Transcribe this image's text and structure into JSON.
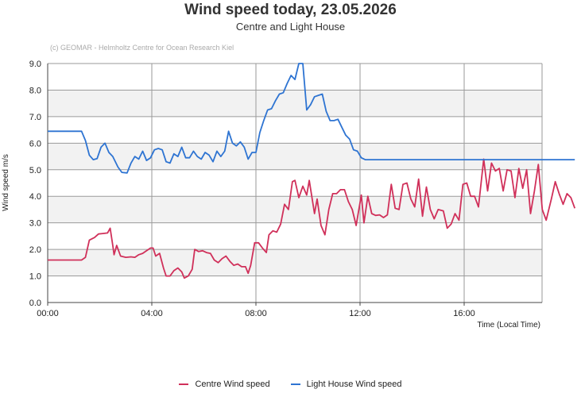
{
  "colors": {
    "centre": "#d0305a",
    "lighthouse": "#2e74d2",
    "grid": "#9a9a9a",
    "band": "#f2f2f2"
  },
  "chart_data": {
    "type": "line",
    "title": "Wind speed today, 23.05.2026",
    "subtitle": "Centre and Light House",
    "credit": "(c) GEOMAR - Helmholtz Centre for Ocean Research Kiel",
    "xlabel": "Time (Local Time)",
    "ylabel": "Wind speed  m/s",
    "xlim": [
      0,
      19
    ],
    "ylim": [
      0,
      9
    ],
    "grid": true,
    "legend_position": "bottom",
    "x_ticks": [
      {
        "value": 0,
        "label": "00:00"
      },
      {
        "value": 4,
        "label": "04:00"
      },
      {
        "value": 8,
        "label": "08:00"
      },
      {
        "value": 12,
        "label": "12:00"
      },
      {
        "value": 16,
        "label": "16:00"
      }
    ],
    "y_ticks": [
      {
        "value": 0,
        "label": "0.0"
      },
      {
        "value": 1,
        "label": "1.0"
      },
      {
        "value": 2,
        "label": "2.0"
      },
      {
        "value": 3,
        "label": "3.0"
      },
      {
        "value": 4,
        "label": "4.0"
      },
      {
        "value": 5,
        "label": "5.0"
      },
      {
        "value": 6,
        "label": "6.0"
      },
      {
        "value": 7,
        "label": "7.0"
      },
      {
        "value": 8,
        "label": "8.0"
      },
      {
        "value": 9,
        "label": "9.0"
      }
    ],
    "series": [
      {
        "name": "Centre Wind speed",
        "color": "#d0305a",
        "points": [
          [
            0,
            1.6
          ],
          [
            1.3,
            1.6
          ],
          [
            1.45,
            1.7
          ],
          [
            1.6,
            2.35
          ],
          [
            1.8,
            2.45
          ],
          [
            1.95,
            2.58
          ],
          [
            2.15,
            2.6
          ],
          [
            2.3,
            2.62
          ],
          [
            2.4,
            2.8
          ],
          [
            2.5,
            2.15
          ],
          [
            2.55,
            1.8
          ],
          [
            2.65,
            2.15
          ],
          [
            2.8,
            1.75
          ],
          [
            3.0,
            1.7
          ],
          [
            3.2,
            1.72
          ],
          [
            3.35,
            1.7
          ],
          [
            3.5,
            1.8
          ],
          [
            3.65,
            1.85
          ],
          [
            3.8,
            1.95
          ],
          [
            3.95,
            2.05
          ],
          [
            4.05,
            2.05
          ],
          [
            4.15,
            1.75
          ],
          [
            4.3,
            1.85
          ],
          [
            4.45,
            1.3
          ],
          [
            4.55,
            1.0
          ],
          [
            4.7,
            1.0
          ],
          [
            4.85,
            1.2
          ],
          [
            5.0,
            1.3
          ],
          [
            5.15,
            1.15
          ],
          [
            5.25,
            0.92
          ],
          [
            5.4,
            1.0
          ],
          [
            5.55,
            1.25
          ],
          [
            5.65,
            2.0
          ],
          [
            5.8,
            1.92
          ],
          [
            5.95,
            1.95
          ],
          [
            6.1,
            1.88
          ],
          [
            6.25,
            1.85
          ],
          [
            6.4,
            1.6
          ],
          [
            6.55,
            1.5
          ],
          [
            6.7,
            1.65
          ],
          [
            6.85,
            1.75
          ],
          [
            7.0,
            1.55
          ],
          [
            7.15,
            1.4
          ],
          [
            7.3,
            1.45
          ],
          [
            7.45,
            1.35
          ],
          [
            7.6,
            1.35
          ],
          [
            7.7,
            1.1
          ],
          [
            7.8,
            1.4
          ],
          [
            7.95,
            2.25
          ],
          [
            8.1,
            2.25
          ],
          [
            8.25,
            2.05
          ],
          [
            8.4,
            1.88
          ],
          [
            8.5,
            2.55
          ],
          [
            8.65,
            2.7
          ],
          [
            8.8,
            2.65
          ],
          [
            8.95,
            2.95
          ],
          [
            9.1,
            3.7
          ],
          [
            9.25,
            3.5
          ],
          [
            9.4,
            4.55
          ],
          [
            9.5,
            4.6
          ],
          [
            9.65,
            3.95
          ],
          [
            9.8,
            4.38
          ],
          [
            9.95,
            4.05
          ],
          [
            10.05,
            4.6
          ],
          [
            10.25,
            3.35
          ],
          [
            10.35,
            3.9
          ],
          [
            10.5,
            2.9
          ],
          [
            10.65,
            2.55
          ],
          [
            10.8,
            3.5
          ],
          [
            10.95,
            4.1
          ],
          [
            11.1,
            4.1
          ],
          [
            11.25,
            4.25
          ],
          [
            11.4,
            4.25
          ],
          [
            11.55,
            3.8
          ],
          [
            11.7,
            3.5
          ],
          [
            11.85,
            2.9
          ],
          [
            12.05,
            4.05
          ],
          [
            12.15,
            3.0
          ],
          [
            12.3,
            4.0
          ],
          [
            12.45,
            3.35
          ],
          [
            12.6,
            3.28
          ],
          [
            12.75,
            3.3
          ],
          [
            12.9,
            3.2
          ],
          [
            13.05,
            3.3
          ],
          [
            13.2,
            4.45
          ],
          [
            13.35,
            3.55
          ],
          [
            13.5,
            3.5
          ],
          [
            13.65,
            4.45
          ],
          [
            13.8,
            4.5
          ],
          [
            13.95,
            3.9
          ],
          [
            14.1,
            3.6
          ],
          [
            14.25,
            4.65
          ],
          [
            14.4,
            3.25
          ],
          [
            14.55,
            4.35
          ],
          [
            14.7,
            3.5
          ],
          [
            14.85,
            3.15
          ],
          [
            15.0,
            3.5
          ],
          [
            15.2,
            3.45
          ],
          [
            15.35,
            2.8
          ],
          [
            15.5,
            2.95
          ],
          [
            15.65,
            3.35
          ],
          [
            15.8,
            3.1
          ],
          [
            15.95,
            4.45
          ],
          [
            16.1,
            4.5
          ],
          [
            16.25,
            4.0
          ],
          [
            16.4,
            4.0
          ],
          [
            16.55,
            3.6
          ],
          [
            16.75,
            5.4
          ],
          [
            16.9,
            4.2
          ],
          [
            17.05,
            5.25
          ],
          [
            17.2,
            4.95
          ],
          [
            17.35,
            5.05
          ],
          [
            17.5,
            4.2
          ],
          [
            17.65,
            5.0
          ],
          [
            17.8,
            4.95
          ],
          [
            17.95,
            3.95
          ],
          [
            18.1,
            5.05
          ],
          [
            18.25,
            4.3
          ],
          [
            18.4,
            5.0
          ],
          [
            18.55,
            3.35
          ],
          [
            18.7,
            4.2
          ],
          [
            18.85,
            5.2
          ],
          [
            19.0,
            3.5
          ],
          [
            19.15,
            3.1
          ],
          [
            19.35,
            3.9
          ],
          [
            19.5,
            4.55
          ],
          [
            19.65,
            4.1
          ],
          [
            19.8,
            3.7
          ],
          [
            19.95,
            4.1
          ],
          [
            20.1,
            3.95
          ],
          [
            20.25,
            3.55
          ]
        ]
      },
      {
        "name": "Light House Wind speed",
        "color": "#2e74d2",
        "points": [
          [
            0,
            6.45
          ],
          [
            1.3,
            6.45
          ],
          [
            1.45,
            6.1
          ],
          [
            1.6,
            5.55
          ],
          [
            1.75,
            5.38
          ],
          [
            1.9,
            5.42
          ],
          [
            2.05,
            5.85
          ],
          [
            2.2,
            6.0
          ],
          [
            2.35,
            5.65
          ],
          [
            2.5,
            5.5
          ],
          [
            2.7,
            5.1
          ],
          [
            2.85,
            4.9
          ],
          [
            3.05,
            4.88
          ],
          [
            3.2,
            5.25
          ],
          [
            3.35,
            5.5
          ],
          [
            3.5,
            5.4
          ],
          [
            3.65,
            5.7
          ],
          [
            3.8,
            5.35
          ],
          [
            3.95,
            5.45
          ],
          [
            4.1,
            5.75
          ],
          [
            4.25,
            5.8
          ],
          [
            4.4,
            5.75
          ],
          [
            4.55,
            5.3
          ],
          [
            4.7,
            5.25
          ],
          [
            4.85,
            5.6
          ],
          [
            5.0,
            5.5
          ],
          [
            5.15,
            5.85
          ],
          [
            5.3,
            5.45
          ],
          [
            5.45,
            5.45
          ],
          [
            5.6,
            5.7
          ],
          [
            5.75,
            5.5
          ],
          [
            5.9,
            5.4
          ],
          [
            6.05,
            5.65
          ],
          [
            6.2,
            5.55
          ],
          [
            6.35,
            5.3
          ],
          [
            6.5,
            5.7
          ],
          [
            6.65,
            5.5
          ],
          [
            6.8,
            5.7
          ],
          [
            6.95,
            6.45
          ],
          [
            7.1,
            6.0
          ],
          [
            7.25,
            5.9
          ],
          [
            7.4,
            6.05
          ],
          [
            7.55,
            5.85
          ],
          [
            7.7,
            5.4
          ],
          [
            7.85,
            5.65
          ],
          [
            8.0,
            5.65
          ],
          [
            8.15,
            6.4
          ],
          [
            8.3,
            6.85
          ],
          [
            8.45,
            7.25
          ],
          [
            8.6,
            7.3
          ],
          [
            8.75,
            7.6
          ],
          [
            8.9,
            7.85
          ],
          [
            9.05,
            7.9
          ],
          [
            9.2,
            8.25
          ],
          [
            9.35,
            8.55
          ],
          [
            9.5,
            8.4
          ],
          [
            9.65,
            9.0
          ],
          [
            9.8,
            9.0
          ],
          [
            9.95,
            7.25
          ],
          [
            10.1,
            7.45
          ],
          [
            10.25,
            7.75
          ],
          [
            10.4,
            7.8
          ],
          [
            10.55,
            7.85
          ],
          [
            10.7,
            7.2
          ],
          [
            10.85,
            6.85
          ],
          [
            11.0,
            6.85
          ],
          [
            11.15,
            6.9
          ],
          [
            11.3,
            6.6
          ],
          [
            11.45,
            6.3
          ],
          [
            11.6,
            6.15
          ],
          [
            11.75,
            5.75
          ],
          [
            11.9,
            5.7
          ],
          [
            12.05,
            5.45
          ],
          [
            12.2,
            5.38
          ],
          [
            12.5,
            5.38
          ],
          [
            20.25,
            5.38
          ]
        ]
      }
    ]
  }
}
